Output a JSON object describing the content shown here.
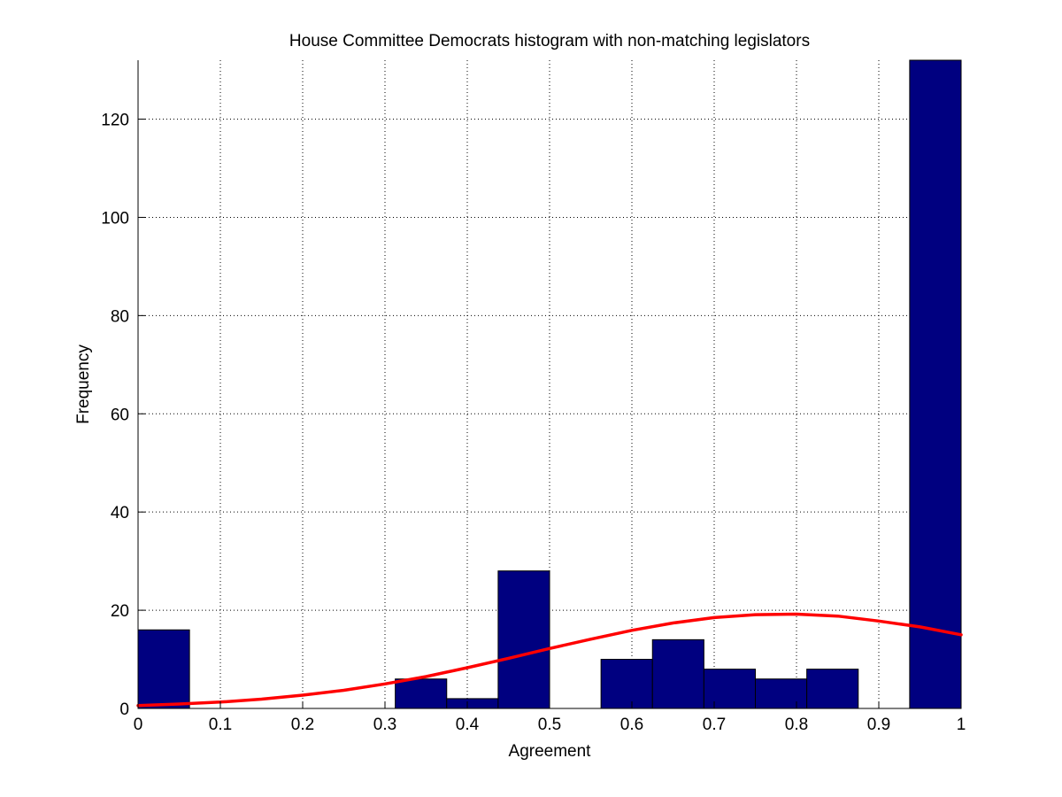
{
  "chart_data": {
    "type": "bar",
    "subtype": "histogram-with-fitted-curve",
    "title": "House Committee Democrats histogram with non-matching legislators",
    "xlabel": "Agreement",
    "ylabel": "Frequency",
    "xlim": [
      0,
      1
    ],
    "ylim": [
      0,
      132
    ],
    "grid": true,
    "x_ticks": [
      0,
      0.1,
      0.2,
      0.3,
      0.4,
      0.5,
      0.6,
      0.7,
      0.8,
      0.9,
      1
    ],
    "x_tick_labels": [
      "0",
      "0.1",
      "0.2",
      "0.3",
      "0.4",
      "0.5",
      "0.6",
      "0.7",
      "0.8",
      "0.9",
      "1"
    ],
    "y_ticks": [
      0,
      20,
      40,
      60,
      80,
      100,
      120
    ],
    "y_tick_labels": [
      "0",
      "20",
      "40",
      "60",
      "80",
      "100",
      "120"
    ],
    "bin_width": 0.0625,
    "bins": [
      {
        "start": 0.0,
        "end": 0.0625,
        "count": 16
      },
      {
        "start": 0.0625,
        "end": 0.125,
        "count": 0
      },
      {
        "start": 0.125,
        "end": 0.1875,
        "count": 0
      },
      {
        "start": 0.1875,
        "end": 0.25,
        "count": 0
      },
      {
        "start": 0.25,
        "end": 0.3125,
        "count": 0
      },
      {
        "start": 0.3125,
        "end": 0.375,
        "count": 6
      },
      {
        "start": 0.375,
        "end": 0.4375,
        "count": 2
      },
      {
        "start": 0.4375,
        "end": 0.5,
        "count": 28
      },
      {
        "start": 0.5,
        "end": 0.5625,
        "count": 0
      },
      {
        "start": 0.5625,
        "end": 0.625,
        "count": 10
      },
      {
        "start": 0.625,
        "end": 0.6875,
        "count": 14
      },
      {
        "start": 0.6875,
        "end": 0.75,
        "count": 8
      },
      {
        "start": 0.75,
        "end": 0.8125,
        "count": 6
      },
      {
        "start": 0.8125,
        "end": 0.875,
        "count": 8
      },
      {
        "start": 0.875,
        "end": 0.9375,
        "count": 0
      },
      {
        "start": 0.9375,
        "end": 1.0,
        "count": 132
      }
    ],
    "fit_curve": {
      "x": [
        0,
        0.05,
        0.1,
        0.15,
        0.2,
        0.25,
        0.3,
        0.35,
        0.4,
        0.45,
        0.5,
        0.55,
        0.6,
        0.65,
        0.7,
        0.75,
        0.8,
        0.85,
        0.9,
        0.95,
        1.0
      ],
      "y": [
        0.6,
        0.9,
        1.3,
        1.9,
        2.7,
        3.7,
        5.0,
        6.5,
        8.3,
        10.2,
        12.2,
        14.1,
        15.9,
        17.4,
        18.5,
        19.1,
        19.2,
        18.8,
        17.8,
        16.6,
        15.0
      ]
    },
    "colors": {
      "bar_fill": "#000080",
      "bar_edge": "#000000",
      "curve": "#ff0000",
      "grid": "#000000",
      "background": "#ffffff"
    }
  }
}
